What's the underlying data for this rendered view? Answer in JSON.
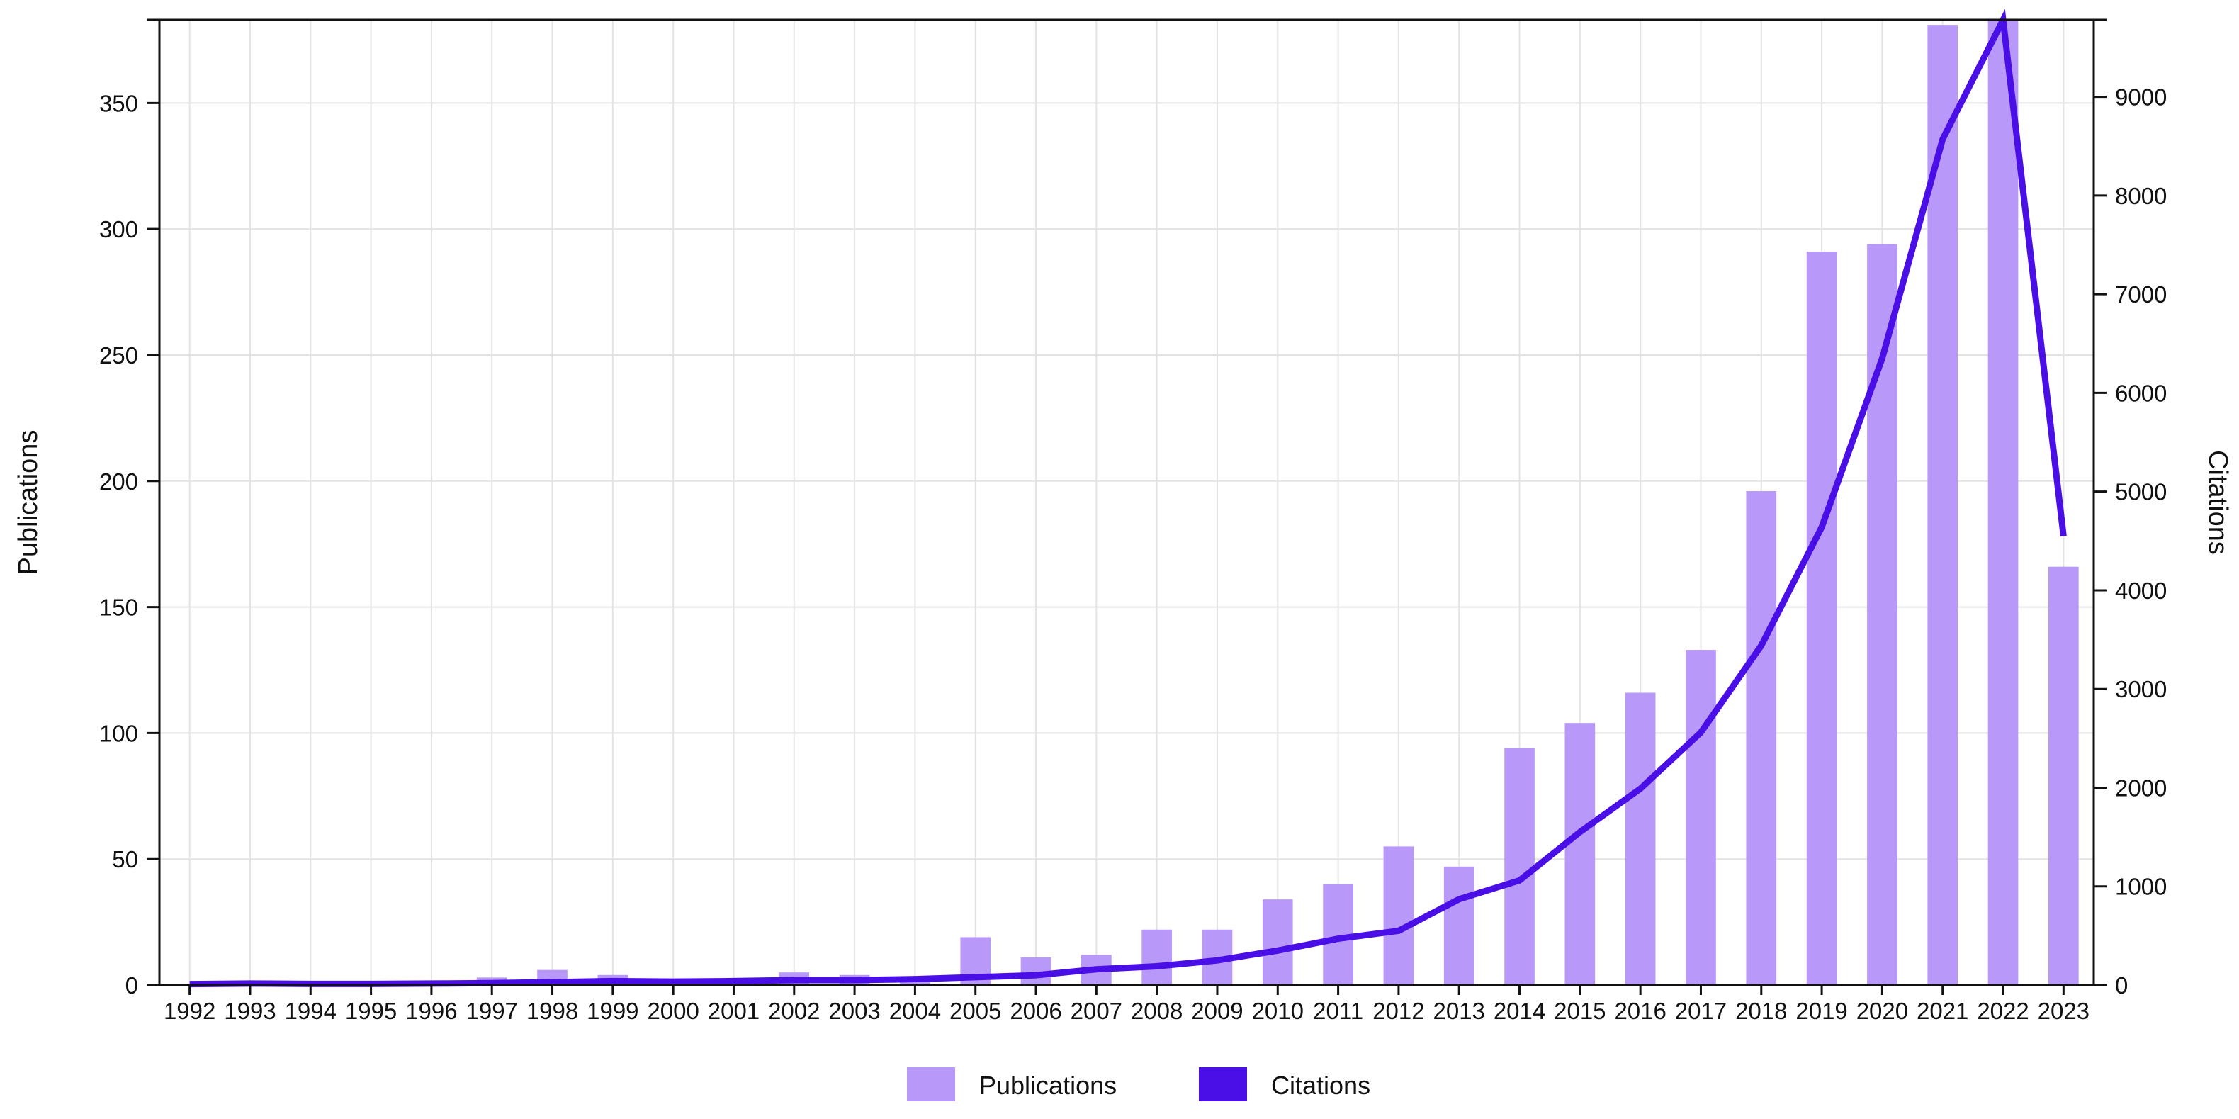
{
  "chart_data": {
    "type": "bar",
    "title": "",
    "categories": [
      "1992",
      "1993",
      "1994",
      "1995",
      "1996",
      "1997",
      "1998",
      "1999",
      "2000",
      "2001",
      "2002",
      "2003",
      "2004",
      "2005",
      "2006",
      "2007",
      "2008",
      "2009",
      "2010",
      "2011",
      "2012",
      "2013",
      "2014",
      "2015",
      "2016",
      "2017",
      "2018",
      "2019",
      "2020",
      "2021",
      "2022",
      "2023"
    ],
    "series": [
      {
        "name": "Publications",
        "type": "bar",
        "axis": "left",
        "color": "#b899fa",
        "values": [
          0,
          0,
          0,
          0,
          1,
          3,
          6,
          4,
          1,
          1,
          5,
          4,
          2,
          19,
          11,
          12,
          22,
          22,
          34,
          40,
          55,
          47,
          94,
          104,
          116,
          133,
          196,
          291,
          294,
          381,
          391,
          166
        ]
      },
      {
        "name": "Citations",
        "type": "line",
        "axis": "right",
        "color": "#4a0fe6",
        "values": [
          10,
          15,
          12,
          12,
          15,
          20,
          30,
          40,
          35,
          40,
          50,
          50,
          60,
          80,
          100,
          160,
          190,
          250,
          350,
          470,
          550,
          870,
          1060,
          1550,
          1990,
          2560,
          3440,
          4640,
          6350,
          8570,
          9780,
          4550
        ]
      }
    ],
    "ylabel": "Publications",
    "y2label": "Citations",
    "xlabel": "",
    "ylim": [
      0,
      383
    ],
    "y2lim": [
      0,
      9780
    ],
    "yticks": [
      "0",
      "50",
      "100",
      "150",
      "200",
      "250",
      "300",
      "350"
    ],
    "y2ticks": [
      "0",
      "1000",
      "2000",
      "3000",
      "4000",
      "5000",
      "6000",
      "7000",
      "8000",
      "9000"
    ],
    "grid": true,
    "legend": {
      "placement": "bottom-center",
      "items": [
        {
          "label": "Publications",
          "color": "#b899fa"
        },
        {
          "label": "Citations",
          "color": "#4a0fe6"
        }
      ]
    }
  }
}
